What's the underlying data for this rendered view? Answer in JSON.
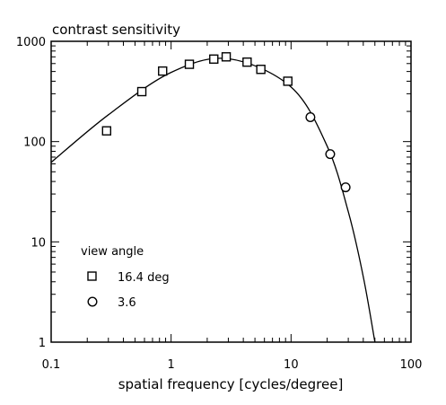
{
  "chart_data": {
    "type": "scatter",
    "title": "contrast sensitivity",
    "xlabel": "spatial frequency [cycles/degree]",
    "ylabel": "",
    "x_scale": "log",
    "y_scale": "log",
    "xlim": [
      0.1,
      100
    ],
    "ylim": [
      1,
      1000
    ],
    "x_ticks": [
      "0.1",
      "1",
      "10",
      "100"
    ],
    "y_ticks": [
      "1",
      "10",
      "100",
      "1000"
    ],
    "grid": false,
    "legend": {
      "title": "view angle",
      "position": "lower-left",
      "entries": [
        "16.4 deg",
        "3.6"
      ]
    },
    "series": [
      {
        "name": "16.4 deg",
        "marker": "square",
        "x": [
          0.29,
          0.57,
          0.85,
          1.42,
          2.27,
          2.88,
          4.3,
          5.6,
          9.4
        ],
        "y": [
          128,
          315,
          505,
          590,
          665,
          700,
          620,
          525,
          400
        ]
      },
      {
        "name": "3.6",
        "marker": "circle",
        "x": [
          14.5,
          21.2,
          28.5
        ],
        "y": [
          175,
          75,
          35
        ]
      },
      {
        "name": "",
        "marker": "none",
        "style": "line",
        "x": [
          0.1,
          0.3,
          1,
          3,
          10,
          20,
          30,
          40,
          50
        ],
        "y": [
          62,
          185,
          490,
          670,
          350,
          90,
          20,
          4.5,
          1
        ]
      }
    ]
  }
}
